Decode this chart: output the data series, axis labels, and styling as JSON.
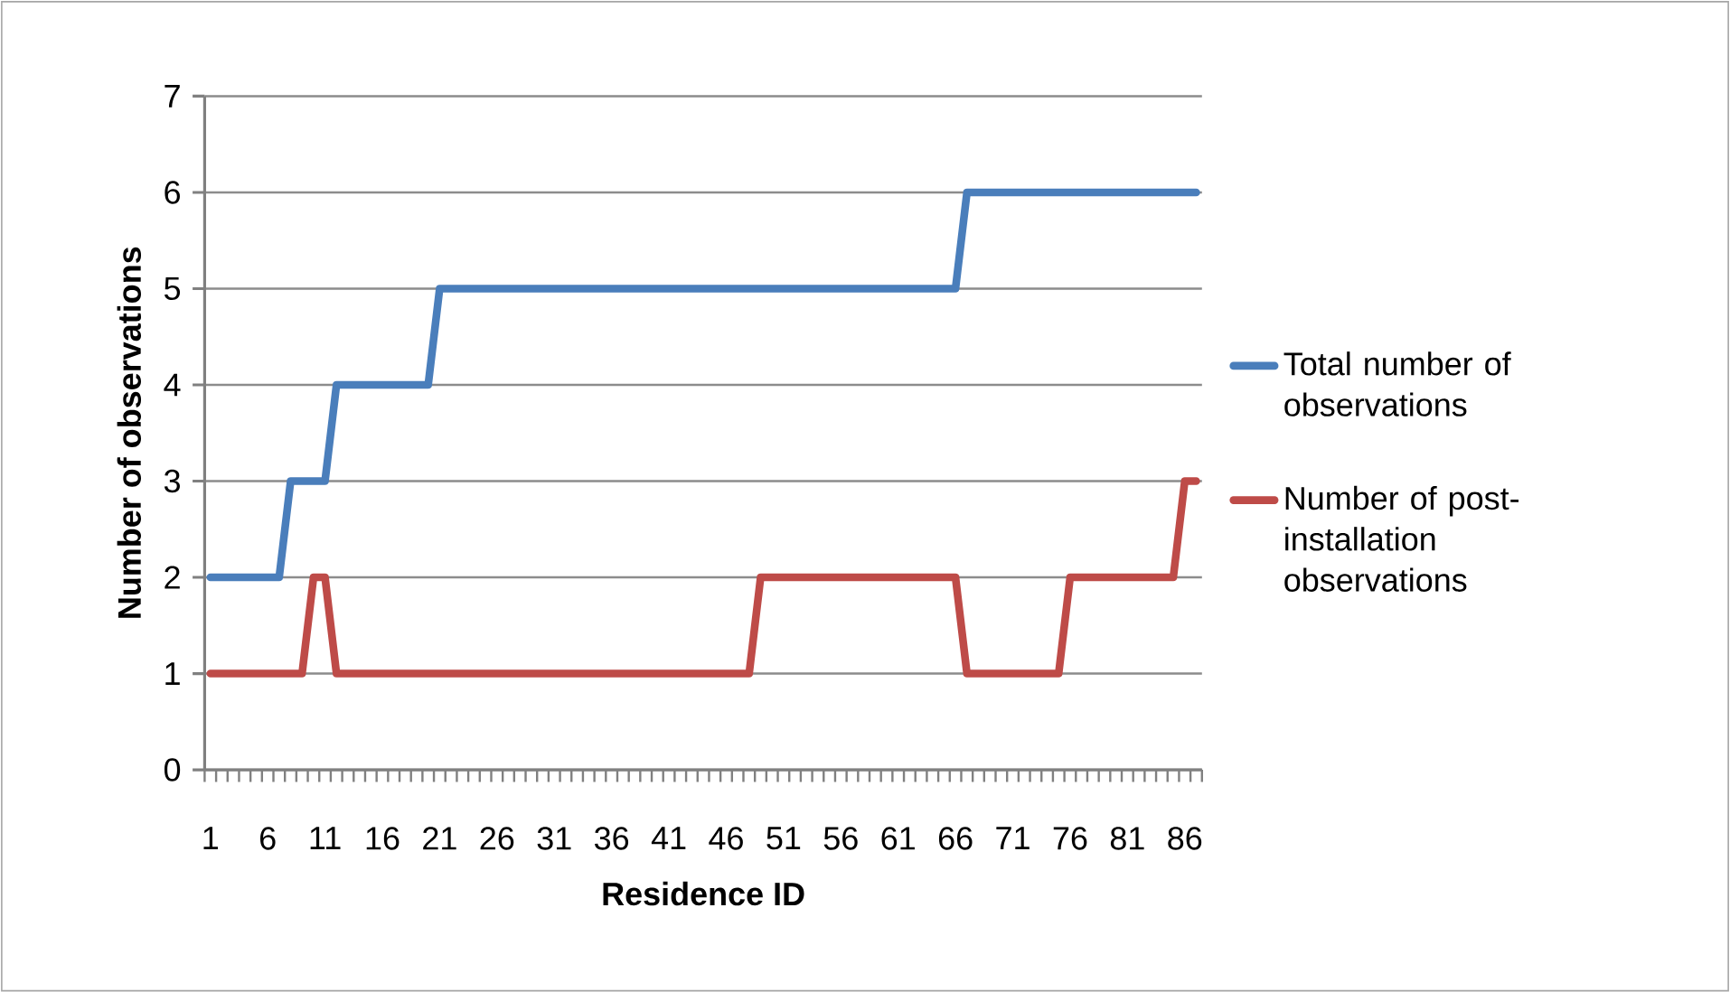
{
  "chart_data": {
    "type": "line",
    "xlabel": "Residence ID",
    "ylabel": "Number of observations",
    "categories": [
      "1",
      null,
      null,
      null,
      null,
      "6",
      null,
      null,
      null,
      null,
      "11",
      null,
      null,
      null,
      null,
      "16",
      null,
      null,
      null,
      null,
      "21",
      null,
      null,
      null,
      null,
      "26",
      null,
      null,
      null,
      null,
      "31",
      null,
      null,
      null,
      null,
      "36",
      null,
      null,
      null,
      null,
      "41",
      null,
      null,
      null,
      null,
      "46",
      null,
      null,
      null,
      null,
      "51",
      null,
      null,
      null,
      null,
      "56",
      null,
      null,
      null,
      null,
      "61",
      null,
      null,
      null,
      null,
      "66",
      null,
      null,
      null,
      null,
      "71",
      null,
      null,
      null,
      null,
      "76",
      null,
      null,
      null,
      null,
      "81",
      null,
      null,
      null,
      null,
      "86",
      null
    ],
    "series": [
      {
        "name": "Total number of observations",
        "color": "#4a7ebb",
        "values": [
          2,
          2,
          2,
          2,
          2,
          2,
          2,
          3,
          3,
          3,
          3,
          4,
          4,
          4,
          4,
          4,
          4,
          4,
          4,
          4,
          5,
          5,
          5,
          5,
          5,
          5,
          5,
          5,
          5,
          5,
          5,
          5,
          5,
          5,
          5,
          5,
          5,
          5,
          5,
          5,
          5,
          5,
          5,
          5,
          5,
          5,
          5,
          5,
          5,
          5,
          5,
          5,
          5,
          5,
          5,
          5,
          5,
          5,
          5,
          5,
          5,
          5,
          5,
          5,
          5,
          5,
          6,
          6,
          6,
          6,
          6,
          6,
          6,
          6,
          6,
          6,
          6,
          6,
          6,
          6,
          6,
          6,
          6,
          6,
          6,
          6,
          6
        ]
      },
      {
        "name": "Number of post-installation observations",
        "color": "#be4b48",
        "values": [
          1,
          1,
          1,
          1,
          1,
          1,
          1,
          1,
          1,
          2,
          2,
          1,
          1,
          1,
          1,
          1,
          1,
          1,
          1,
          1,
          1,
          1,
          1,
          1,
          1,
          1,
          1,
          1,
          1,
          1,
          1,
          1,
          1,
          1,
          1,
          1,
          1,
          1,
          1,
          1,
          1,
          1,
          1,
          1,
          1,
          1,
          1,
          1,
          2,
          2,
          2,
          2,
          2,
          2,
          2,
          2,
          2,
          2,
          2,
          2,
          2,
          2,
          2,
          2,
          2,
          2,
          1,
          1,
          1,
          1,
          1,
          1,
          1,
          1,
          1,
          2,
          2,
          2,
          2,
          2,
          2,
          2,
          2,
          2,
          2,
          3,
          3
        ]
      }
    ],
    "ylim": [
      0,
      7
    ],
    "yticks": [
      0,
      1,
      2,
      3,
      4,
      5,
      6,
      7
    ],
    "grid": "y",
    "legend": "right",
    "marker": "none",
    "line_style": "solid"
  }
}
